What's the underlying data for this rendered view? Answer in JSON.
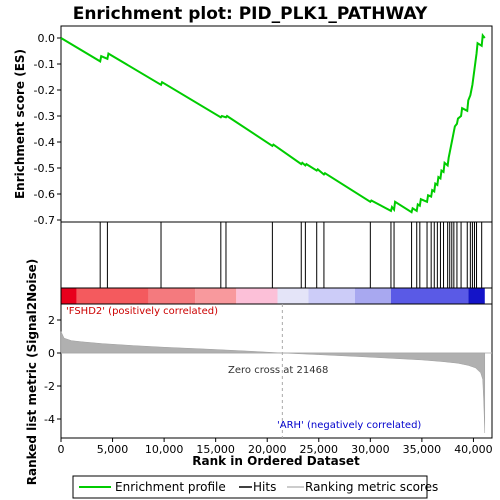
{
  "chart_data": {
    "type": "line",
    "title": "Enrichment plot: PID_PLK1_PATHWAY",
    "xlabel": "Rank in Ordered Dataset",
    "es_ylabel": "Enrichment score (ES)",
    "metric_ylabel": "Ranked list metric (Signal2Noise)",
    "xlim": [
      0,
      41800
    ],
    "es_ylim": [
      -0.7,
      0.02
    ],
    "metric_ylim": [
      -5.0,
      3.2
    ],
    "x_ticks": [
      0,
      5000,
      10000,
      15000,
      20000,
      25000,
      30000,
      35000,
      40000
    ],
    "x_tick_labels": [
      "0",
      "5,000",
      "10,000",
      "15,000",
      "20,000",
      "25,000",
      "30,000",
      "35,000",
      "40,000"
    ],
    "es_ticks": [
      0.0,
      -0.1,
      -0.2,
      -0.3,
      -0.4,
      -0.5,
      -0.6,
      -0.7
    ],
    "es_tick_labels": [
      "0.0",
      "-0.1",
      "-0.2",
      "-0.3",
      "-0.4",
      "-0.5",
      "-0.6",
      "-0.7"
    ],
    "metric_ticks": [
      2,
      0,
      -2,
      -4
    ],
    "metric_tick_labels": [
      "2",
      "0",
      "-2",
      "-4"
    ],
    "series": [
      {
        "name": "Enrichment profile",
        "color": "#00cc00",
        "x": [
          0,
          3800,
          3900,
          4500,
          4600,
          9700,
          9800,
          15500,
          15600,
          16000,
          16100,
          20500,
          20600,
          23300,
          23400,
          23700,
          23800,
          24800,
          24900,
          25500,
          25600,
          30000,
          30100,
          32000,
          32100,
          32300,
          32400,
          34000,
          34100,
          34500,
          34600,
          34800,
          34900,
          35500,
          35600,
          35900,
          36000,
          36200,
          36300,
          36500,
          36600,
          36800,
          36900,
          37100,
          37200,
          37500,
          37600,
          37700,
          37800,
          37900,
          38000,
          38100,
          38200,
          38400,
          38500,
          38800,
          38900,
          39400,
          39500,
          39700,
          39800,
          39900,
          40000,
          40100,
          40200,
          40300,
          40400,
          40800,
          40900,
          41100
        ],
        "y": [
          0.0,
          -0.09,
          -0.07,
          -0.08,
          -0.06,
          -0.18,
          -0.17,
          -0.305,
          -0.3,
          -0.305,
          -0.3,
          -0.415,
          -0.41,
          -0.485,
          -0.48,
          -0.49,
          -0.485,
          -0.51,
          -0.505,
          -0.525,
          -0.52,
          -0.63,
          -0.625,
          -0.665,
          -0.65,
          -0.66,
          -0.63,
          -0.67,
          -0.655,
          -0.665,
          -0.64,
          -0.645,
          -0.62,
          -0.63,
          -0.605,
          -0.61,
          -0.585,
          -0.59,
          -0.56,
          -0.565,
          -0.535,
          -0.54,
          -0.51,
          -0.515,
          -0.48,
          -0.49,
          -0.46,
          -0.44,
          -0.42,
          -0.4,
          -0.38,
          -0.36,
          -0.34,
          -0.33,
          -0.31,
          -0.3,
          -0.27,
          -0.28,
          -0.24,
          -0.22,
          -0.2,
          -0.18,
          -0.15,
          -0.12,
          -0.09,
          -0.06,
          -0.02,
          -0.03,
          0.01,
          0.0
        ]
      }
    ],
    "hits": [
      3800,
      4500,
      9700,
      15500,
      16000,
      20500,
      23300,
      23700,
      24800,
      25500,
      30000,
      32000,
      32300,
      34000,
      34500,
      34800,
      35500,
      35900,
      36200,
      36500,
      36800,
      37100,
      37500,
      37700,
      37900,
      38100,
      38400,
      38800,
      39400,
      39700,
      39900,
      40100,
      40300,
      40800
    ],
    "metric_curve": {
      "x": [
        0,
        300,
        1000,
        2000,
        4000,
        7000,
        10000,
        14000,
        18000,
        21468,
        25000,
        29000,
        32000,
        35000,
        37000,
        38500,
        39500,
        40200,
        40700,
        40900,
        41000,
        41100
      ],
      "y": [
        1.3,
        0.9,
        0.75,
        0.68,
        0.57,
        0.45,
        0.35,
        0.24,
        0.12,
        0.0,
        -0.1,
        -0.22,
        -0.32,
        -0.42,
        -0.52,
        -0.62,
        -0.75,
        -0.9,
        -1.2,
        -1.6,
        -3.0,
        -4.85
      ]
    },
    "zero_cross_label": "Zero cross at 21468",
    "zero_cross": 21468,
    "pos_label": "'FSHD2' (positively correlated)",
    "neg_label": "'ARH' (negatively correlated)",
    "legend": {
      "enrichment": "Enrichment profile",
      "hits": "Hits",
      "ranking": "Ranking metric scores"
    },
    "colors": {
      "profile": "#00cc00",
      "metric_fill": "#b0b0b0",
      "pos_label": "#cc0000",
      "neg_label": "#0000cc",
      "zero_line": "#bbbbbb"
    },
    "heat_segments": [
      {
        "x0": 0,
        "x1": 1500,
        "color": "#e8001c"
      },
      {
        "x0": 1500,
        "x1": 8500,
        "color": "#f45a5e"
      },
      {
        "x0": 8500,
        "x1": 13000,
        "color": "#f47a7e"
      },
      {
        "x0": 13000,
        "x1": 17000,
        "color": "#f8999d"
      },
      {
        "x0": 17000,
        "x1": 21000,
        "color": "#fcc0d8"
      },
      {
        "x0": 21000,
        "x1": 24000,
        "color": "#e4e4f8"
      },
      {
        "x0": 24000,
        "x1": 28500,
        "color": "#ccccf8"
      },
      {
        "x0": 28500,
        "x1": 32000,
        "color": "#a8a8f0"
      },
      {
        "x0": 32000,
        "x1": 39500,
        "color": "#5a5ae6"
      },
      {
        "x0": 39500,
        "x1": 41100,
        "color": "#1414c8"
      }
    ]
  }
}
